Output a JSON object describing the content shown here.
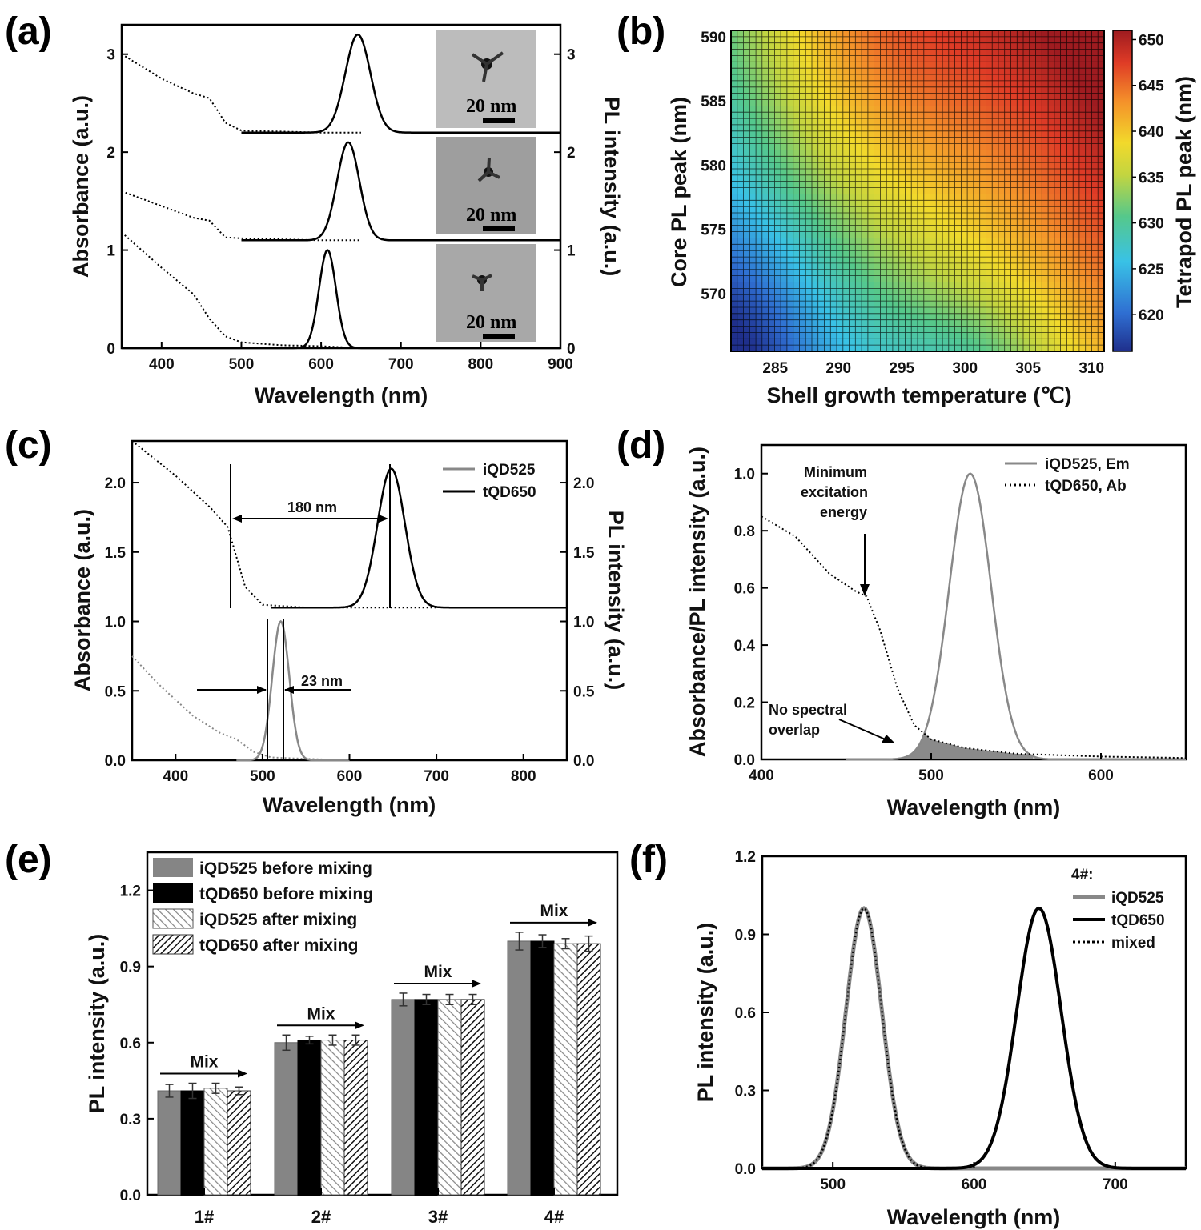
{
  "chart_data": [
    {
      "panel": "(a)",
      "type": "line",
      "xlabel": "Wavelength (nm)",
      "ylabel": "Absorbance (a.u.)",
      "ylabel_right": "PL intensity (a.u.)",
      "xlim": [
        350,
        900
      ],
      "ylim": [
        0,
        3.3
      ],
      "xticks": [
        400,
        500,
        600,
        700,
        800,
        900
      ],
      "yticks": [
        0,
        1,
        2,
        3
      ],
      "series": [
        {
          "style": "dotted",
          "x": [
            350,
            400,
            440,
            460,
            480,
            500,
            550,
            600,
            650
          ],
          "y": [
            1.18,
            0.82,
            0.55,
            0.3,
            0.12,
            0.06,
            0.03,
            0.02,
            0
          ]
        },
        {
          "style": "solid",
          "peak": 608,
          "fwhm": 25,
          "offset": 0
        },
        {
          "style": "dotted",
          "x": [
            350,
            400,
            440,
            460,
            480,
            500,
            550,
            600,
            650
          ],
          "y": [
            1.6,
            1.45,
            1.33,
            1.3,
            1.13,
            1.12,
            1.11,
            1.1,
            1.1
          ]
        },
        {
          "style": "solid",
          "peak": 634,
          "fwhm": 33,
          "offset": 1.1
        },
        {
          "style": "dotted",
          "x": [
            350,
            400,
            440,
            460,
            480,
            500,
            550,
            600,
            650
          ],
          "y": [
            3.0,
            2.75,
            2.6,
            2.55,
            2.3,
            2.22,
            2.21,
            2.2,
            2.2
          ]
        },
        {
          "style": "solid",
          "peak": 646,
          "fwhm": 37,
          "offset": 2.2
        }
      ],
      "insets": [
        {
          "scalebar": "20 nm"
        },
        {
          "scalebar": "20 nm"
        },
        {
          "scalebar": "20 nm"
        }
      ]
    },
    {
      "panel": "(b)",
      "type": "heatmap",
      "xlabel": "Shell growth temperature (℃)",
      "ylabel": "Core PL peak (nm)",
      "colorbar_label": "Tetrapod PL peak (nm)",
      "xlim": [
        281.5,
        311
      ],
      "ylim": [
        565.5,
        590.5
      ],
      "xticks": [
        285,
        290,
        295,
        300,
        305,
        310
      ],
      "yticks": [
        570,
        575,
        580,
        585,
        590
      ],
      "colorbar_ticks": [
        620,
        625,
        630,
        635,
        640,
        645,
        650
      ],
      "zlim": [
        616,
        651
      ]
    },
    {
      "panel": "(c)",
      "type": "line",
      "xlabel": "Wavelength (nm)",
      "ylabel": "Absorbance (a.u.)",
      "ylabel_right": "PL intensity (a.u.)",
      "xlim": [
        350,
        850
      ],
      "ylim": [
        0,
        2.3
      ],
      "xticks": [
        400,
        500,
        600,
        700,
        800
      ],
      "yticks": [
        0.0,
        0.5,
        1.0,
        1.5,
        2.0
      ],
      "legend": [
        "iQD525",
        "tQD650"
      ],
      "annotations": [
        "180 nm",
        "23 nm"
      ],
      "series": [
        {
          "name": "iQD525",
          "style": "dotted",
          "x": [
            350,
            380,
            420,
            450,
            470,
            490,
            510,
            550,
            600
          ],
          "y": [
            0.75,
            0.55,
            0.32,
            0.2,
            0.15,
            0.06,
            0.02,
            0.01,
            0
          ]
        },
        {
          "name": "iQD525",
          "style": "solid",
          "peak": 521,
          "fwhm": 23,
          "offset": 0
        },
        {
          "name": "tQD650",
          "style": "dotted",
          "x": [
            350,
            400,
            440,
            460,
            480,
            500,
            550,
            600,
            650,
            700
          ],
          "y": [
            2.3,
            2.05,
            1.82,
            1.68,
            1.25,
            1.12,
            1.1,
            1.1,
            1.1,
            1.1
          ]
        },
        {
          "name": "tQD650",
          "style": "solid",
          "peak": 648,
          "fwhm": 37,
          "offset": 1.1
        }
      ]
    },
    {
      "panel": "(d)",
      "type": "line",
      "xlabel": "Wavelength (nm)",
      "ylabel": "Absorbance/PL intensity (a.u.)",
      "xlim": [
        400,
        650
      ],
      "ylim": [
        0,
        1.1
      ],
      "xticks": [
        400,
        500,
        600
      ],
      "yticks": [
        0.0,
        0.2,
        0.4,
        0.6,
        0.8,
        1.0
      ],
      "legend": [
        "iQD525, Em",
        "tQD650, Ab"
      ],
      "annotations": [
        "Minimum excitation energy",
        "No spectral overlap"
      ],
      "series": [
        {
          "name": "iQD525, Em",
          "style": "solid",
          "peak": 523,
          "fwhm": 29
        },
        {
          "name": "tQD650, Ab",
          "style": "dotted",
          "x": [
            400,
            420,
            440,
            455,
            462,
            470,
            480,
            490,
            500,
            520,
            550,
            600,
            650
          ],
          "y": [
            0.85,
            0.78,
            0.65,
            0.59,
            0.57,
            0.45,
            0.25,
            0.12,
            0.07,
            0.04,
            0.02,
            0.01,
            0.005
          ]
        }
      ]
    },
    {
      "panel": "(e)",
      "type": "bar",
      "ylabel": "PL intensity (a.u.)",
      "ylim": [
        0,
        1.35
      ],
      "yticks": [
        0.0,
        0.3,
        0.6,
        0.9,
        1.2
      ],
      "categories": [
        "1#",
        "2#",
        "3#",
        "4#"
      ],
      "group_label": "Mix",
      "series": [
        {
          "name": "iQD525 before mixing",
          "values": [
            0.41,
            0.6,
            0.77,
            1.0
          ],
          "errors": [
            0.025,
            0.03,
            0.025,
            0.035
          ]
        },
        {
          "name": "tQD650 before mixing",
          "values": [
            0.41,
            0.61,
            0.77,
            1.0
          ],
          "errors": [
            0.03,
            0.015,
            0.02,
            0.025
          ]
        },
        {
          "name": "iQD525 after mixing",
          "values": [
            0.42,
            0.61,
            0.77,
            0.99
          ],
          "errors": [
            0.02,
            0.02,
            0.02,
            0.02
          ]
        },
        {
          "name": "tQD650 after mixing",
          "values": [
            0.41,
            0.61,
            0.77,
            0.99
          ],
          "errors": [
            0.015,
            0.02,
            0.02,
            0.03
          ]
        }
      ]
    },
    {
      "panel": "(f)",
      "type": "line",
      "xlabel": "Wavelength (nm)",
      "ylabel": "PL intensity (a.u.)",
      "xlim": [
        450,
        750
      ],
      "ylim": [
        0,
        1.2
      ],
      "xticks": [
        500,
        600,
        700
      ],
      "yticks": [
        0.0,
        0.3,
        0.6,
        0.9,
        1.2
      ],
      "legend_title": "4#:",
      "legend": [
        "iQD525",
        "tQD650",
        "mixed"
      ],
      "series": [
        {
          "name": "iQD525",
          "style": "gray",
          "peak": 522,
          "fwhm": 30
        },
        {
          "name": "tQD650",
          "style": "black",
          "peak": 646,
          "fwhm": 37
        },
        {
          "name": "mixed",
          "style": "dotted",
          "peaks": [
            522,
            646
          ]
        }
      ]
    }
  ]
}
